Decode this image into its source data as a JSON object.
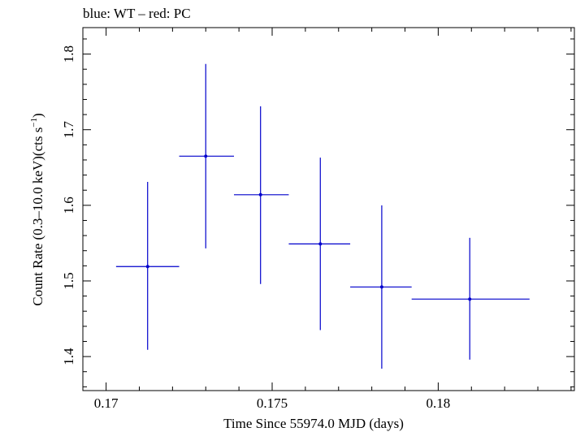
{
  "chart_data": {
    "type": "scatter",
    "title": "blue: WT – red: PC",
    "xlabel": "Time Since 55974.0 MJD (days)",
    "ylabel_main": "Count Rate (0.3–10.0 keV)(cts s",
    "ylabel_sup": "−1",
    "ylabel_close": ")",
    "xlim": [
      0.1693,
      0.1841
    ],
    "ylim": [
      1.355,
      1.835
    ],
    "xticks": [
      {
        "value": 0.17,
        "label": "0.17"
      },
      {
        "value": 0.175,
        "label": "0.175"
      },
      {
        "value": 0.18,
        "label": "0.18"
      }
    ],
    "yticks": [
      {
        "value": 1.4,
        "label": "1.4"
      },
      {
        "value": 1.5,
        "label": "1.5"
      },
      {
        "value": 1.6,
        "label": "1.6"
      },
      {
        "value": 1.7,
        "label": "1.7"
      },
      {
        "value": 1.8,
        "label": "1.8"
      }
    ],
    "grid": false,
    "series": [
      {
        "name": "WT",
        "color": "#0000cc",
        "points": [
          {
            "x": 0.17125,
            "xerr_low": 0.1703,
            "xerr_high": 0.1722,
            "y": 1.519,
            "yerr_low": 1.409,
            "yerr_high": 1.631
          },
          {
            "x": 0.173,
            "xerr_low": 0.1722,
            "xerr_high": 0.17385,
            "y": 1.665,
            "yerr_low": 1.543,
            "yerr_high": 1.787
          },
          {
            "x": 0.17465,
            "xerr_low": 0.17385,
            "xerr_high": 0.1755,
            "y": 1.614,
            "yerr_low": 1.496,
            "yerr_high": 1.731
          },
          {
            "x": 0.17645,
            "xerr_low": 0.1755,
            "xerr_high": 0.17735,
            "y": 1.549,
            "yerr_low": 1.435,
            "yerr_high": 1.663
          },
          {
            "x": 0.1783,
            "xerr_low": 0.17735,
            "xerr_high": 0.1792,
            "y": 1.492,
            "yerr_low": 1.384,
            "yerr_high": 1.6
          },
          {
            "x": 0.18095,
            "xerr_low": 0.1792,
            "xerr_high": 0.18275,
            "y": 1.476,
            "yerr_low": 1.396,
            "yerr_high": 1.557
          }
        ]
      }
    ]
  }
}
